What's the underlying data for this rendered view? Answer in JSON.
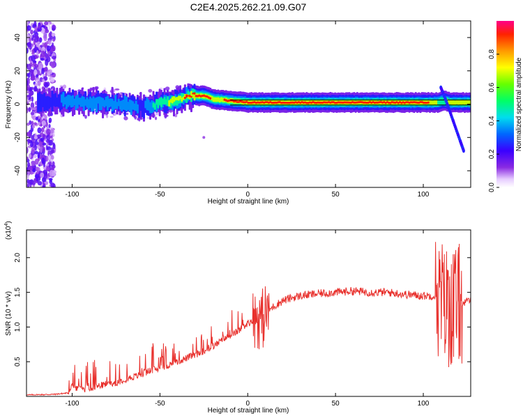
{
  "page": {
    "title": "C2E4.2025.262.21.09.G07"
  },
  "chart_data": [
    {
      "type": "heatmap",
      "title": "C2E4.2025.262.21.09.G07",
      "xlabel": "Height of straight line (km)",
      "ylabel": "Frequency (Hz)",
      "xlim": [
        -126,
        127
      ],
      "ylim": [
        -50,
        50
      ],
      "xticks": [
        -100,
        -50,
        0,
        50,
        100
      ],
      "yticks": [
        -40,
        -20,
        0,
        20,
        40
      ],
      "xtick_labels": [
        "-100",
        "-50",
        "0",
        "50",
        "100"
      ],
      "ytick_labels": [
        "-40",
        "-20",
        "0",
        "20",
        "40"
      ],
      "ridge": {
        "x": [
          -126,
          -110,
          -100,
          -90,
          -80,
          -70,
          -60,
          -50,
          -40,
          -35,
          -25,
          -20,
          -10,
          0,
          10,
          20,
          40,
          60,
          80,
          95,
          105,
          108,
          110,
          112,
          115,
          127
        ],
        "y": [
          1,
          2,
          2,
          1,
          1,
          0,
          -2,
          1,
          2,
          5,
          5,
          3,
          2,
          1,
          1,
          1,
          1,
          1,
          1,
          1,
          1,
          1,
          2,
          2,
          1,
          1
        ],
        "amplitude": [
          0.2,
          0.3,
          0.35,
          0.4,
          0.35,
          0.35,
          0.3,
          0.55,
          0.7,
          0.9,
          0.9,
          0.8,
          0.85,
          0.9,
          0.95,
          0.95,
          0.95,
          0.95,
          0.95,
          0.95,
          0.8,
          0.5,
          0.55,
          0.6,
          0.7,
          0.75
        ]
      },
      "noise_region_x": [
        -126,
        -110
      ],
      "tail": {
        "x": [
          110,
          113,
          117,
          121,
          123
        ],
        "y": [
          10,
          2,
          -10,
          -22,
          -28
        ]
      },
      "colorbar": {
        "label": "Normalized spectral amplitude",
        "range": [
          0,
          1
        ],
        "ticks": [
          0.0,
          0.2,
          0.4,
          0.6,
          0.8
        ],
        "tick_labels": [
          "0.0",
          "0.2",
          "0.4",
          "0.6",
          "0.8"
        ]
      }
    },
    {
      "type": "line",
      "xlabel": "Height of straight line (km)",
      "ylabel": "SNR (10 * v/v)",
      "y_multiplier": "(x10",
      "y_multiplier_exp": "4",
      "y_multiplier_close": ")",
      "xlim": [
        -126,
        127
      ],
      "ylim": [
        0,
        2.4
      ],
      "xticks": [
        -100,
        -50,
        0,
        50,
        100
      ],
      "yticks": [
        0.5,
        1.0,
        1.5,
        2.0
      ],
      "xtick_labels": [
        "-100",
        "-50",
        "0",
        "50",
        "100"
      ],
      "ytick_labels": [
        "0.5",
        "1.0",
        "1.5",
        "2.0"
      ],
      "series": [
        {
          "name": "SNR",
          "color": "#e8302c",
          "envelope_x": [
            -126,
            -110,
            -102,
            -100,
            -95,
            -90,
            -85,
            -80,
            -75,
            -70,
            -65,
            -60,
            -55,
            -50,
            -45,
            -40,
            -35,
            -30,
            -25,
            -20,
            -15,
            -10,
            -5,
            0,
            5,
            8,
            10,
            15,
            20,
            25,
            30,
            40,
            50,
            60,
            70,
            80,
            90,
            100,
            105,
            108,
            110,
            112,
            114,
            116,
            118,
            120,
            122,
            124,
            127
          ],
          "envelope_y": [
            0.02,
            0.03,
            0.05,
            0.15,
            0.1,
            0.12,
            0.15,
            0.18,
            0.2,
            0.25,
            0.28,
            0.32,
            0.38,
            0.4,
            0.45,
            0.5,
            0.55,
            0.6,
            0.65,
            0.72,
            0.8,
            0.88,
            0.95,
            1.05,
            1.15,
            1.1,
            1.2,
            1.3,
            1.38,
            1.42,
            1.45,
            1.48,
            1.5,
            1.52,
            1.5,
            1.5,
            1.47,
            1.45,
            1.45,
            1.45,
            1.4,
            1.35,
            1.3,
            1.3,
            1.3,
            1.32,
            1.35,
            1.35,
            1.4
          ]
        }
      ]
    }
  ]
}
